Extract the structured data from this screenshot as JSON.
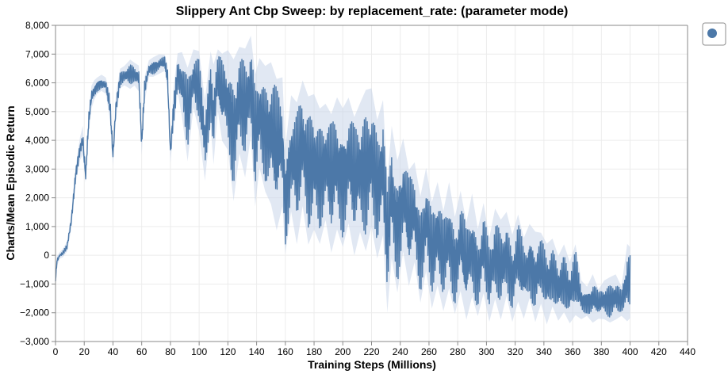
{
  "chart_data": {
    "type": "line",
    "title": "Slippery Ant Cbp Sweep: by replacement_rate: (parameter mode)",
    "xlabel": "Training Steps (Millions)",
    "ylabel": "Charts/Mean Episodic Return",
    "xlim": [
      0,
      440
    ],
    "ylim": [
      -3000,
      8000
    ],
    "x_ticks": [
      0,
      20,
      40,
      60,
      80,
      100,
      120,
      140,
      160,
      180,
      200,
      220,
      240,
      260,
      280,
      300,
      320,
      340,
      360,
      380,
      400,
      420,
      440
    ],
    "x_tick_labels": [
      "0",
      "20",
      "40",
      "60",
      "80",
      "100",
      "120",
      "140",
      "160",
      "180",
      "200",
      "220",
      "240",
      "260",
      "280",
      "300",
      "320",
      "340",
      "360",
      "380",
      "400",
      "420",
      "440"
    ],
    "y_ticks": [
      -3000,
      -2000,
      -1000,
      0,
      1000,
      2000,
      3000,
      4000,
      5000,
      6000,
      7000,
      8000
    ],
    "y_tick_labels": [
      "−3,000",
      "−2,000",
      "−1,000",
      "0",
      "1,000",
      "2,000",
      "3,000",
      "4,000",
      "5,000",
      "6,000",
      "7,000",
      "8,000"
    ],
    "grid": true,
    "legend": {
      "placement": "top-right",
      "entries": [
        {
          "marker": "circle",
          "color": "#4c78a8",
          "label": ""
        }
      ]
    },
    "series": [
      {
        "color": "#4c78a8",
        "band_color": "#c9d6ea",
        "x": [
          0,
          1,
          3,
          5,
          8,
          11,
          14,
          17,
          19,
          21,
          23,
          25,
          27,
          29,
          32,
          35,
          38,
          40,
          42,
          45,
          48,
          52,
          55,
          58,
          60,
          62,
          65,
          68,
          72,
          76,
          78,
          80,
          82,
          85,
          88,
          92,
          96,
          100,
          104,
          108,
          110,
          113,
          116,
          120,
          124,
          128,
          132,
          136,
          139,
          142,
          146,
          150,
          154,
          158,
          160,
          164,
          168,
          172,
          176,
          180,
          184,
          188,
          192,
          196,
          200,
          204,
          208,
          212,
          216,
          220,
          224,
          228,
          231,
          234,
          238,
          242,
          246,
          250,
          254,
          258,
          262,
          266,
          270,
          274,
          278,
          282,
          286,
          290,
          294,
          298,
          302,
          306,
          310,
          314,
          318,
          322,
          326,
          330,
          334,
          338,
          342,
          346,
          350,
          354,
          358,
          362,
          366,
          370,
          374,
          378,
          382,
          386,
          390,
          394,
          398,
          400
        ],
        "low": [
          -1000,
          -300,
          -50,
          0,
          200,
          1000,
          2600,
          3400,
          3600,
          2600,
          4300,
          5200,
          5500,
          5700,
          5800,
          5700,
          4800,
          3200,
          4800,
          5900,
          6000,
          5900,
          6000,
          5800,
          3600,
          5400,
          6300,
          6300,
          6400,
          6500,
          5800,
          3300,
          4400,
          5800,
          5000,
          3500,
          5300,
          4500,
          2800,
          4700,
          3400,
          5200,
          4200,
          3900,
          2200,
          3800,
          3000,
          4400,
          2000,
          3300,
          2500,
          2100,
          1200,
          2000,
          300,
          1800,
          700,
          2000,
          700,
          1200,
          700,
          1500,
          400,
          1200,
          600,
          1400,
          300,
          1100,
          500,
          1300,
          200,
          1000,
          -1700,
          200,
          -1000,
          400,
          -800,
          0,
          -1400,
          -300,
          -1600,
          -800,
          -1700,
          -900,
          -1800,
          -1000,
          -2000,
          -1200,
          -1900,
          -1100,
          -2100,
          -1300,
          -2000,
          -1200,
          -2100,
          -1400,
          -2000,
          -1300,
          -2100,
          -1500,
          -2200,
          -1600,
          -2100,
          -1800,
          -2200,
          -1900,
          -2100,
          -2000,
          -2200,
          -2100,
          -2100,
          -2200,
          -2100,
          -2000,
          -2100,
          -2000
        ],
        "high": [
          -800,
          -100,
          50,
          150,
          400,
          1400,
          3000,
          4000,
          4400,
          2900,
          4900,
          5800,
          6000,
          6100,
          6200,
          6100,
          5500,
          3700,
          5500,
          6400,
          6500,
          6700,
          6600,
          6500,
          4200,
          6100,
          6700,
          6800,
          6900,
          6900,
          6500,
          3800,
          5600,
          6900,
          6900,
          6300,
          7000,
          6900,
          5200,
          6900,
          6400,
          7000,
          6800,
          6900,
          6500,
          7000,
          6900,
          7400,
          6000,
          6600,
          6300,
          6400,
          5800,
          5900,
          3500,
          5300,
          5000,
          5800,
          5200,
          5300,
          4800,
          5000,
          4600,
          5200,
          4800,
          5200,
          4500,
          5000,
          5400,
          5500,
          4400,
          5100,
          2300,
          4200,
          3000,
          3800,
          2700,
          3000,
          1800,
          2800,
          1600,
          2300,
          1300,
          2300,
          1100,
          2000,
          900,
          1900,
          700,
          1600,
          400,
          1400,
          1000,
          1300,
          500,
          1200,
          400,
          900,
          600,
          600,
          200,
          400,
          -200,
          200,
          -400,
          200,
          -1000,
          -1200,
          -800,
          -1300,
          -1000,
          -900,
          -800,
          -1200,
          200,
          100
        ]
      }
    ]
  }
}
